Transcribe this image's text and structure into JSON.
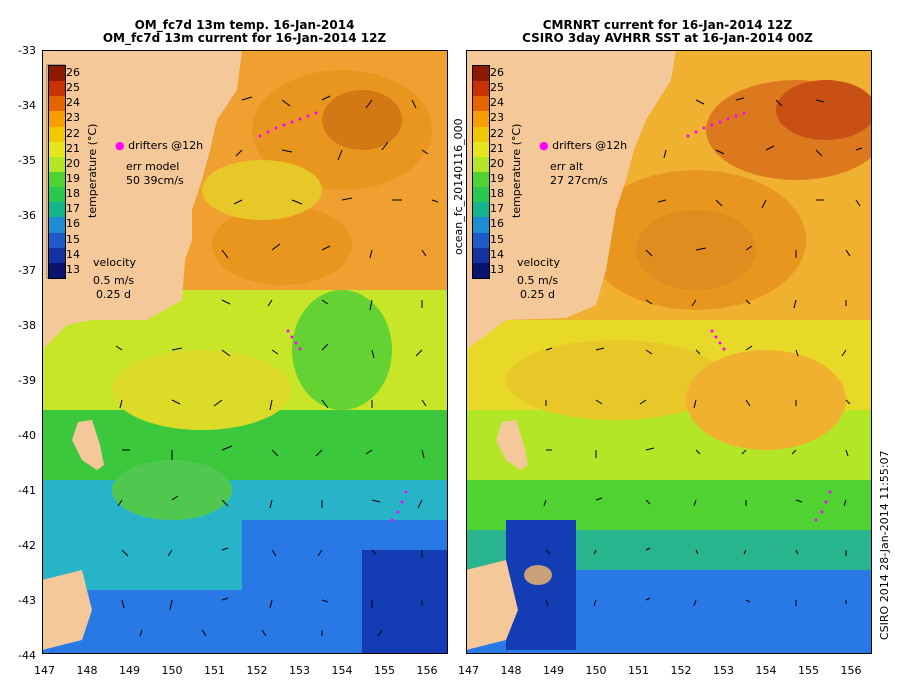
{
  "left_panel": {
    "title_line1": "OM_fc7d 13m temp. 16-Jan-2014",
    "title_line2": "OM_fc7d 13m current for 16-Jan-2014 12Z",
    "drifters_label": "drifters @12h",
    "err_label": "err model",
    "err_values": "50 39cm/s",
    "velocity_label": "velocity",
    "velocity_speed": "0.5 m/s",
    "velocity_time": "0.25 d",
    "colorbar_label": "temperature (°C)"
  },
  "right_panel": {
    "title_line1": "CMRNRT current for 16-Jan-2014 12Z",
    "title_line2": "CSIRO 3day AVHRR SST at 16-Jan-2014 00Z",
    "drifters_label": "drifters @12h",
    "err_label": "err alt",
    "err_values": "27 27cm/s",
    "velocity_label": "velocity",
    "velocity_speed": "0.5 m/s",
    "velocity_time": "0.25 d",
    "colorbar_label": "temperature (°C)",
    "side_label": "ocean_fc_20140116_000"
  },
  "colorbar_ticks": [
    "26",
    "25",
    "24",
    "23",
    "22",
    "21",
    "20",
    "19",
    "18",
    "17",
    "16",
    "15",
    "14",
    "13"
  ],
  "colorbar_colors": [
    "#8b1a00",
    "#c83200",
    "#e66400",
    "#f5a000",
    "#f0c800",
    "#e6e61e",
    "#b4e628",
    "#50d232",
    "#28c850",
    "#14b48c",
    "#1e8cd2",
    "#1e5ac8",
    "#1432a0",
    "#0a146e"
  ],
  "y_ticks": [
    "-33",
    "-34",
    "-35",
    "-36",
    "-37",
    "-38",
    "-39",
    "-40",
    "-41",
    "-42",
    "-43",
    "-44"
  ],
  "x_ticks": [
    "147",
    "148",
    "149",
    "150",
    "151",
    "152",
    "153",
    "154",
    "155",
    "156"
  ],
  "footer_right": "CSIRO 2014   28-Jan-2014 11:55:07",
  "map_colors": {
    "land": "#f5c89a",
    "warm_core": "#e88a1e",
    "orange": "#f0a030",
    "yellow": "#e8d820",
    "green": "#3cc83c",
    "cyan": "#28b4c8",
    "blue": "#2878e6",
    "deep_blue": "#143cb4",
    "drifter": "#ff00ff"
  }
}
